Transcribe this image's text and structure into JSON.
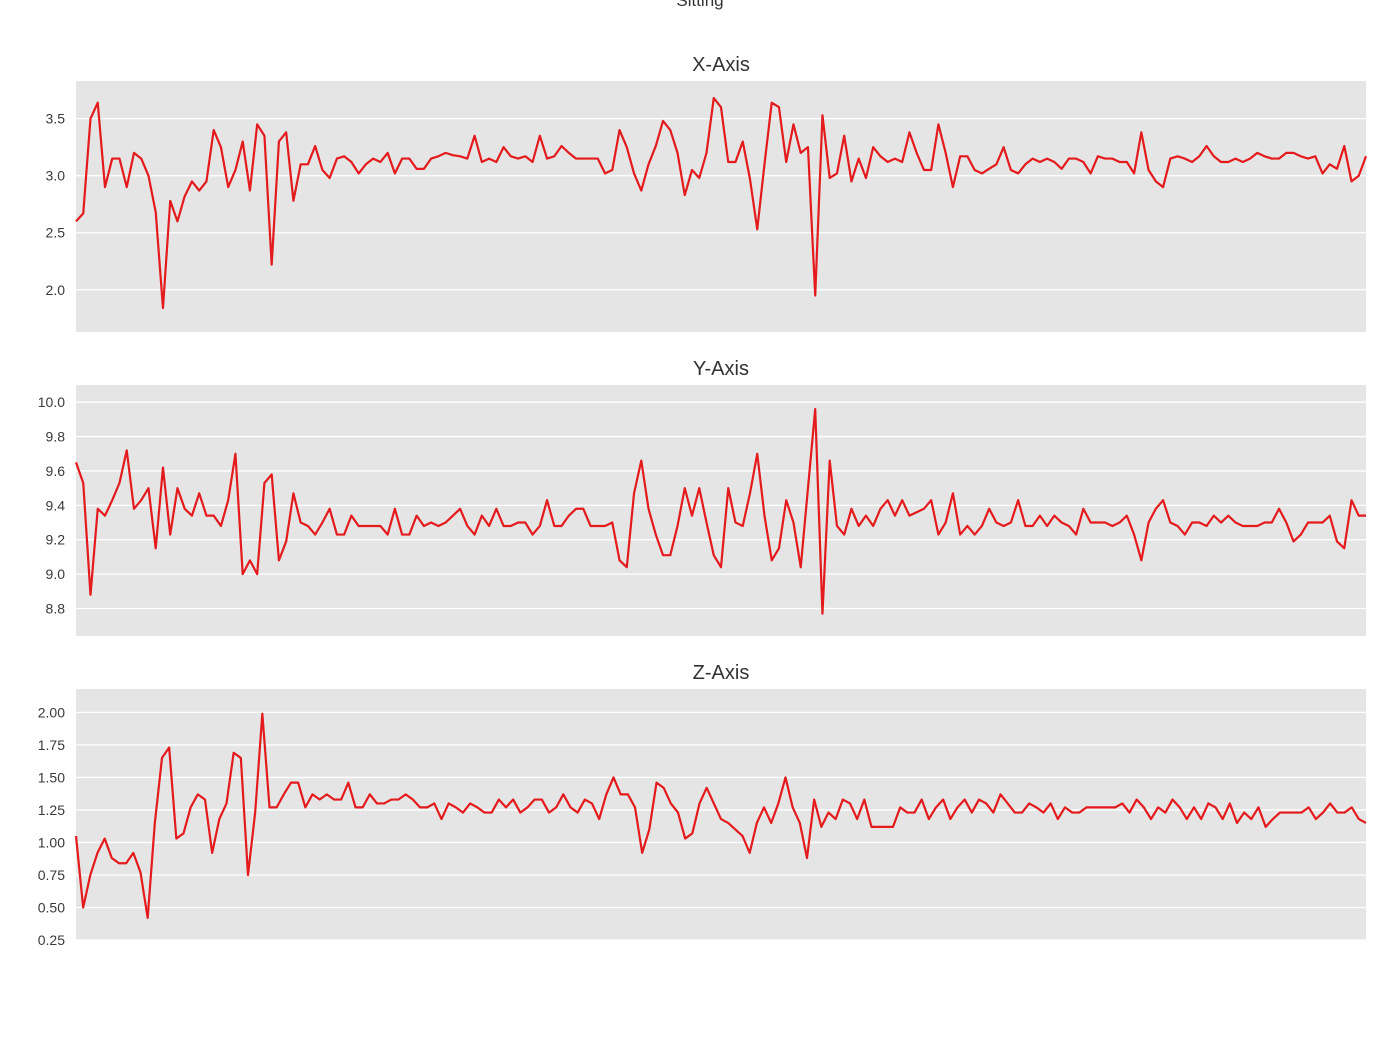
{
  "figure": {
    "title": "Sitting"
  },
  "chart_data": [
    {
      "type": "line",
      "title": "X-Axis",
      "xlabel": "",
      "ylabel": "",
      "ylim": [
        1.63,
        3.83
      ],
      "yticks": [
        2.0,
        2.5,
        3.0,
        3.5
      ],
      "ytick_labels": [
        "2.0",
        "2.5",
        "3.0",
        "3.5"
      ],
      "grid": true,
      "line_color": "#e41a1c",
      "series": [
        {
          "values": [
            2.6,
            2.67,
            3.5,
            3.64,
            2.9,
            3.15,
            3.15,
            2.9,
            3.2,
            3.15,
            3.0,
            2.68,
            1.84,
            2.78,
            2.6,
            2.82,
            2.95,
            2.87,
            2.95,
            3.4,
            3.25,
            2.9,
            3.05,
            3.3,
            2.87,
            3.45,
            3.35,
            2.22,
            3.3,
            3.38,
            2.78,
            3.1,
            3.1,
            3.26,
            3.05,
            2.98,
            3.15,
            3.17,
            3.12,
            3.02,
            3.1,
            3.15,
            3.12,
            3.2,
            3.02,
            3.15,
            3.15,
            3.06,
            3.06,
            3.15,
            3.17,
            3.2,
            3.18,
            3.17,
            3.15,
            3.35,
            3.12,
            3.15,
            3.12,
            3.25,
            3.17,
            3.15,
            3.17,
            3.12,
            3.35,
            3.15,
            3.17,
            3.26,
            3.2,
            3.15,
            3.15,
            3.15,
            3.15,
            3.02,
            3.05,
            3.4,
            3.25,
            3.02,
            2.87,
            3.1,
            3.26,
            3.48,
            3.4,
            3.2,
            2.83,
            3.05,
            2.98,
            3.2,
            3.68,
            3.6,
            3.12,
            3.12,
            3.3,
            2.97,
            2.53,
            3.1,
            3.64,
            3.6,
            3.12,
            3.45,
            3.2,
            3.25,
            1.95,
            3.53,
            2.98,
            3.02,
            3.35,
            2.95,
            3.15,
            2.98,
            3.25,
            3.17,
            3.12,
            3.15,
            3.12,
            3.38,
            3.2,
            3.05,
            3.05,
            3.45,
            3.2,
            2.9,
            3.17,
            3.17,
            3.05,
            3.02,
            3.06,
            3.1,
            3.25,
            3.05,
            3.02,
            3.1,
            3.15,
            3.12,
            3.15,
            3.12,
            3.06,
            3.15,
            3.15,
            3.12,
            3.02,
            3.17,
            3.15,
            3.15,
            3.12,
            3.12,
            3.02,
            3.38,
            3.05,
            2.95,
            2.9,
            3.15,
            3.17,
            3.15,
            3.12,
            3.17,
            3.26,
            3.17,
            3.12,
            3.12,
            3.15,
            3.12,
            3.15,
            3.2,
            3.17,
            3.15,
            3.15,
            3.2,
            3.2,
            3.17,
            3.15,
            3.17,
            3.02,
            3.1,
            3.06,
            3.26,
            2.95,
            3.0,
            3.17
          ]
        }
      ]
    },
    {
      "type": "line",
      "title": "Y-Axis",
      "xlabel": "",
      "ylabel": "",
      "ylim": [
        8.64,
        10.1
      ],
      "yticks": [
        8.8,
        9.0,
        9.2,
        9.4,
        9.6,
        9.8,
        10.0
      ],
      "ytick_labels": [
        "8.8",
        "9.0",
        "9.2",
        "9.4",
        "9.6",
        "9.8",
        "10.0"
      ],
      "grid": true,
      "line_color": "#e41a1c",
      "series": [
        {
          "values": [
            9.65,
            9.53,
            8.88,
            9.38,
            9.34,
            9.43,
            9.53,
            9.72,
            9.38,
            9.43,
            9.5,
            9.15,
            9.62,
            9.23,
            9.5,
            9.38,
            9.34,
            9.47,
            9.34,
            9.34,
            9.28,
            9.43,
            9.7,
            9.0,
            9.08,
            9.0,
            9.53,
            9.58,
            9.08,
            9.19,
            9.47,
            9.3,
            9.28,
            9.23,
            9.3,
            9.38,
            9.23,
            9.23,
            9.34,
            9.28,
            9.28,
            9.28,
            9.28,
            9.23,
            9.38,
            9.23,
            9.23,
            9.34,
            9.28,
            9.3,
            9.28,
            9.3,
            9.34,
            9.38,
            9.28,
            9.23,
            9.34,
            9.28,
            9.38,
            9.28,
            9.28,
            9.3,
            9.3,
            9.23,
            9.28,
            9.43,
            9.28,
            9.28,
            9.34,
            9.38,
            9.38,
            9.28,
            9.28,
            9.28,
            9.3,
            9.08,
            9.04,
            9.47,
            9.66,
            9.38,
            9.23,
            9.11,
            9.11,
            9.28,
            9.5,
            9.34,
            9.5,
            9.3,
            9.11,
            9.04,
            9.5,
            9.3,
            9.28,
            9.47,
            9.7,
            9.34,
            9.08,
            9.15,
            9.43,
            9.3,
            9.04,
            9.5,
            9.96,
            8.77,
            9.66,
            9.28,
            9.23,
            9.38,
            9.28,
            9.34,
            9.28,
            9.38,
            9.43,
            9.34,
            9.43,
            9.34,
            9.36,
            9.38,
            9.43,
            9.23,
            9.3,
            9.47,
            9.23,
            9.28,
            9.23,
            9.28,
            9.38,
            9.3,
            9.28,
            9.3,
            9.43,
            9.28,
            9.28,
            9.34,
            9.28,
            9.34,
            9.3,
            9.28,
            9.23,
            9.38,
            9.3,
            9.3,
            9.3,
            9.28,
            9.3,
            9.34,
            9.23,
            9.08,
            9.3,
            9.38,
            9.43,
            9.3,
            9.28,
            9.23,
            9.3,
            9.3,
            9.28,
            9.34,
            9.3,
            9.34,
            9.3,
            9.28,
            9.28,
            9.28,
            9.3,
            9.3,
            9.38,
            9.3,
            9.19,
            9.23,
            9.3,
            9.3,
            9.3,
            9.34,
            9.19,
            9.15,
            9.43,
            9.34,
            9.34
          ]
        }
      ]
    },
    {
      "type": "line",
      "title": "Z-Axis",
      "xlabel": "",
      "ylabel": "",
      "ylim": [
        0.25,
        2.18
      ],
      "yticks": [
        0.25,
        0.5,
        0.75,
        1.0,
        1.25,
        1.5,
        1.75,
        2.0
      ],
      "ytick_labels": [
        "0.25",
        "0.50",
        "0.75",
        "1.00",
        "1.25",
        "1.50",
        "1.75",
        "2.00"
      ],
      "grid": true,
      "line_color": "#e41a1c",
      "series": [
        {
          "values": [
            1.05,
            0.5,
            0.75,
            0.92,
            1.03,
            0.88,
            0.84,
            0.84,
            0.92,
            0.77,
            0.42,
            1.15,
            1.65,
            1.73,
            1.03,
            1.07,
            1.27,
            1.37,
            1.33,
            0.92,
            1.18,
            1.3,
            1.69,
            1.65,
            0.75,
            1.23,
            1.99,
            1.27,
            1.27,
            1.37,
            1.46,
            1.46,
            1.27,
            1.37,
            1.33,
            1.37,
            1.33,
            1.33,
            1.46,
            1.27,
            1.27,
            1.37,
            1.3,
            1.3,
            1.33,
            1.33,
            1.37,
            1.33,
            1.27,
            1.27,
            1.3,
            1.18,
            1.3,
            1.27,
            1.23,
            1.3,
            1.27,
            1.23,
            1.23,
            1.33,
            1.27,
            1.33,
            1.23,
            1.27,
            1.33,
            1.33,
            1.23,
            1.27,
            1.37,
            1.27,
            1.23,
            1.33,
            1.3,
            1.18,
            1.37,
            1.5,
            1.37,
            1.37,
            1.27,
            0.92,
            1.1,
            1.46,
            1.42,
            1.3,
            1.23,
            1.03,
            1.07,
            1.3,
            1.42,
            1.3,
            1.18,
            1.15,
            1.1,
            1.05,
            0.92,
            1.15,
            1.27,
            1.15,
            1.3,
            1.5,
            1.27,
            1.15,
            0.88,
            1.33,
            1.12,
            1.23,
            1.18,
            1.33,
            1.3,
            1.18,
            1.33,
            1.12,
            1.12,
            1.12,
            1.12,
            1.27,
            1.23,
            1.23,
            1.33,
            1.18,
            1.27,
            1.33,
            1.18,
            1.27,
            1.33,
            1.23,
            1.33,
            1.3,
            1.23,
            1.37,
            1.3,
            1.23,
            1.23,
            1.3,
            1.27,
            1.23,
            1.3,
            1.18,
            1.27,
            1.23,
            1.23,
            1.27,
            1.27,
            1.27,
            1.27,
            1.27,
            1.3,
            1.23,
            1.33,
            1.27,
            1.18,
            1.27,
            1.23,
            1.33,
            1.27,
            1.18,
            1.27,
            1.18,
            1.3,
            1.27,
            1.18,
            1.3,
            1.15,
            1.23,
            1.18,
            1.27,
            1.12,
            1.18,
            1.23,
            1.23,
            1.23,
            1.23,
            1.27,
            1.18,
            1.23,
            1.3,
            1.23,
            1.23,
            1.27,
            1.18,
            1.15
          ]
        }
      ]
    }
  ]
}
